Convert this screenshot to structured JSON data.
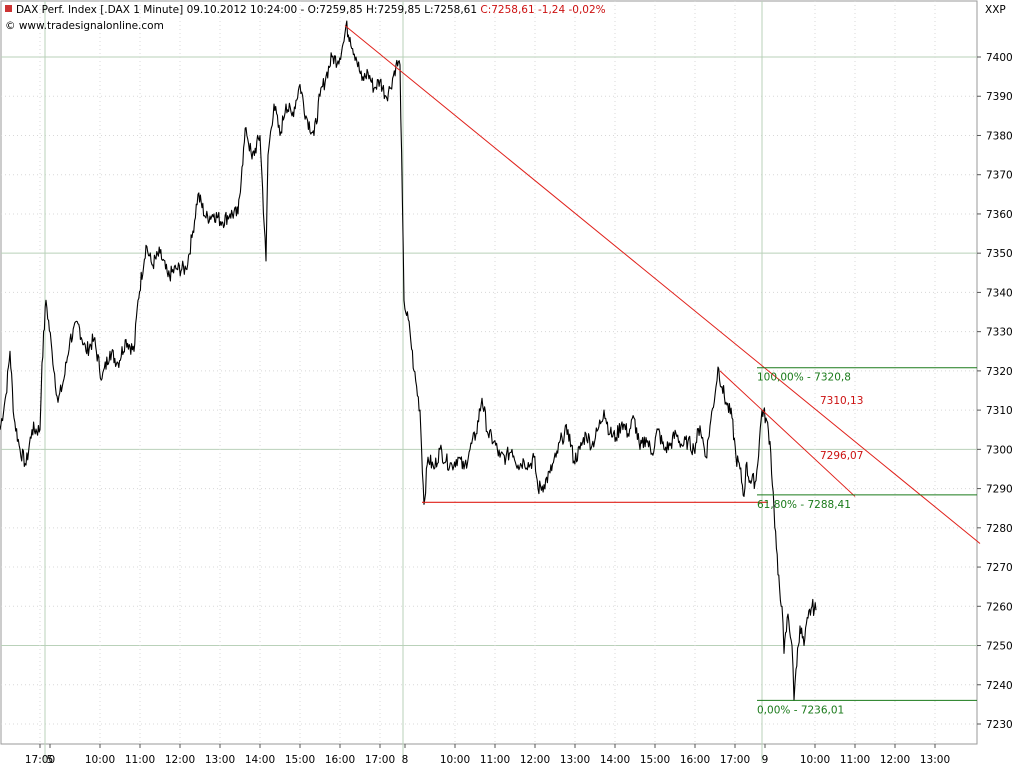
{
  "header": {
    "title_black": "DAX Perf. Index [.DAX  1 Minute] 09.10.2012 10:24:00 - O:7259,85 H:7259,85 L:7258,61",
    "title_red": "C:7258,61 -1,24 -0,02%",
    "source": "© www.tradesignalonline.com",
    "symbol": "XXP"
  },
  "colors": {
    "price_line": "#000000",
    "trend_lines": "#e0201a",
    "fib_lines": "#1a7a1a",
    "grid": "#c8dcc8",
    "axis_text": "#000000"
  },
  "chart_data": {
    "type": "line",
    "title": "DAX Perf. Index [.DAX  1 Minute]",
    "ylim": [
      7223,
      7421
    ],
    "y_ticks": [
      7230,
      7240,
      7250,
      7260,
      7270,
      7280,
      7290,
      7300,
      7310,
      7320,
      7330,
      7340,
      7350,
      7360,
      7370,
      7380,
      7390,
      7400
    ],
    "x_tick_labels": [
      "17:00",
      "5",
      "10:00",
      "11:00",
      "12:00",
      "13:00",
      "14:00",
      "15:00",
      "16:00",
      "17:00",
      "8",
      "10:00",
      "11:00",
      "12:00",
      "13:00",
      "14:00",
      "15:00",
      "16:00",
      "17:00",
      "9",
      "10:00",
      "11:00",
      "12:00",
      "13:00"
    ],
    "x_tick_bar_index": [
      40,
      50,
      100,
      140,
      180,
      220,
      260,
      300,
      340,
      380,
      405,
      455,
      495,
      535,
      575,
      615,
      655,
      695,
      735,
      765,
      815,
      855,
      895,
      935
    ],
    "x_day_separators_bar_index": [
      45,
      403,
      762
    ],
    "grid": true,
    "series": [
      {
        "points": [
          [
            0,
            7305
          ],
          [
            6,
            7314
          ],
          [
            10,
            7325
          ],
          [
            14,
            7308
          ],
          [
            20,
            7300
          ],
          [
            26,
            7296
          ],
          [
            32,
            7305
          ],
          [
            40,
            7305
          ],
          [
            42,
            7322
          ],
          [
            46,
            7338
          ],
          [
            52,
            7325
          ],
          [
            58,
            7312
          ],
          [
            64,
            7318
          ],
          [
            70,
            7328
          ],
          [
            78,
            7332
          ],
          [
            86,
            7325
          ],
          [
            94,
            7328
          ],
          [
            102,
            7318
          ],
          [
            110,
            7325
          ],
          [
            118,
            7322
          ],
          [
            126,
            7328
          ],
          [
            134,
            7325
          ],
          [
            138,
            7338
          ],
          [
            146,
            7352
          ],
          [
            152,
            7347
          ],
          [
            160,
            7350
          ],
          [
            168,
            7344
          ],
          [
            176,
            7346
          ],
          [
            186,
            7346
          ],
          [
            192,
            7354
          ],
          [
            198,
            7365
          ],
          [
            206,
            7359
          ],
          [
            214,
            7360
          ],
          [
            222,
            7358
          ],
          [
            230,
            7360
          ],
          [
            238,
            7360
          ],
          [
            242,
            7372
          ],
          [
            246,
            7382
          ],
          [
            252,
            7374
          ],
          [
            260,
            7380
          ],
          [
            266,
            7348
          ],
          [
            268,
            7375
          ],
          [
            274,
            7388
          ],
          [
            280,
            7380
          ],
          [
            286,
            7388
          ],
          [
            292,
            7385
          ],
          [
            300,
            7393
          ],
          [
            306,
            7385
          ],
          [
            314,
            7380
          ],
          [
            320,
            7390
          ],
          [
            326,
            7395
          ],
          [
            332,
            7400
          ],
          [
            338,
            7399
          ],
          [
            344,
            7404
          ],
          [
            346,
            7408
          ],
          [
            350,
            7405
          ],
          [
            356,
            7400
          ],
          [
            362,
            7394
          ],
          [
            368,
            7396
          ],
          [
            374,
            7392
          ],
          [
            380,
            7394
          ],
          [
            386,
            7390
          ],
          [
            390,
            7392
          ],
          [
            396,
            7398
          ],
          [
            400,
            7398
          ],
          [
            404,
            7338
          ],
          [
            410,
            7330
          ],
          [
            414,
            7320
          ],
          [
            420,
            7310
          ],
          [
            424,
            7286
          ],
          [
            428,
            7298
          ],
          [
            434,
            7295
          ],
          [
            440,
            7300
          ],
          [
            446,
            7297
          ],
          [
            452,
            7296
          ],
          [
            458,
            7298
          ],
          [
            464,
            7295
          ],
          [
            470,
            7300
          ],
          [
            476,
            7304
          ],
          [
            482,
            7313
          ],
          [
            488,
            7304
          ],
          [
            494,
            7302
          ],
          [
            500,
            7298
          ],
          [
            506,
            7298
          ],
          [
            512,
            7300
          ],
          [
            518,
            7296
          ],
          [
            524,
            7297
          ],
          [
            530,
            7296
          ],
          [
            534,
            7298
          ],
          [
            538,
            7290
          ],
          [
            544,
            7291
          ],
          [
            550,
            7294
          ],
          [
            556,
            7298
          ],
          [
            562,
            7303
          ],
          [
            568,
            7305
          ],
          [
            574,
            7297
          ],
          [
            580,
            7300
          ],
          [
            586,
            7304
          ],
          [
            592,
            7301
          ],
          [
            598,
            7305
          ],
          [
            604,
            7310
          ],
          [
            610,
            7304
          ],
          [
            616,
            7303
          ],
          [
            622,
            7307
          ],
          [
            628,
            7304
          ],
          [
            634,
            7308
          ],
          [
            640,
            7300
          ],
          [
            646,
            7303
          ],
          [
            652,
            7299
          ],
          [
            658,
            7305
          ],
          [
            664,
            7300
          ],
          [
            670,
            7301
          ],
          [
            676,
            7304
          ],
          [
            682,
            7301
          ],
          [
            688,
            7302
          ],
          [
            694,
            7300
          ],
          [
            700,
            7306
          ],
          [
            706,
            7298
          ],
          [
            710,
            7306
          ],
          [
            716,
            7316
          ],
          [
            718,
            7321
          ],
          [
            722,
            7316
          ],
          [
            726,
            7312
          ],
          [
            732,
            7308
          ],
          [
            736,
            7298
          ],
          [
            740,
            7295
          ],
          [
            744,
            7288
          ],
          [
            746,
            7296
          ],
          [
            750,
            7292
          ],
          [
            756,
            7292
          ],
          [
            762,
            7310
          ],
          [
            766,
            7308
          ],
          [
            770,
            7302
          ],
          [
            774,
            7285
          ],
          [
            778,
            7268
          ],
          [
            782,
            7260
          ],
          [
            784,
            7248
          ],
          [
            788,
            7258
          ],
          [
            792,
            7250
          ],
          [
            794,
            7236
          ],
          [
            796,
            7244
          ],
          [
            800,
            7255
          ],
          [
            804,
            7250
          ],
          [
            808,
            7257
          ],
          [
            812,
            7260
          ],
          [
            816,
            7259
          ]
        ]
      }
    ],
    "trend_lines": [
      {
        "from": [
          345,
          7408
        ],
        "to": [
          980,
          7276
        ]
      },
      {
        "from": [
          720,
          7320
        ],
        "to": [
          855,
          7288
        ]
      }
    ],
    "support_line": {
      "from": [
        422,
        7286.5
      ],
      "to": [
        768,
        7286.5
      ]
    },
    "fib_levels": [
      {
        "from_x": 757,
        "value": 7320.8,
        "label": "100,00% - 7320,8"
      },
      {
        "from_x": 757,
        "value": 7288.41,
        "label": "61,80% - 7288,41"
      },
      {
        "from_x": 757,
        "value": 7236.01,
        "label": "0,00% - 7236,01"
      }
    ],
    "annotations": [
      {
        "text": "7310,13",
        "x": 820,
        "y": 7311.5
      },
      {
        "text": "7296,07",
        "x": 820,
        "y": 7297.5
      }
    ]
  }
}
